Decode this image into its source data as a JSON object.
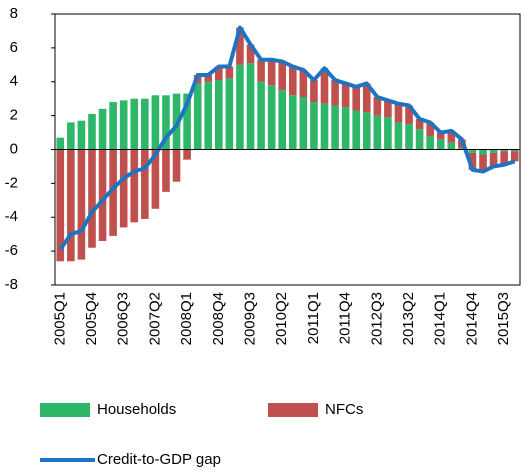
{
  "chart_data": {
    "type": "bar",
    "categories": [
      "2005Q1",
      null,
      null,
      "2005Q4",
      null,
      null,
      "2006Q3",
      null,
      null,
      "2007Q2",
      null,
      null,
      "2008Q1",
      null,
      null,
      "2008Q4",
      null,
      null,
      "2009Q3",
      null,
      null,
      "2010Q2",
      null,
      null,
      "2011Q1",
      null,
      null,
      "2011Q4",
      null,
      null,
      "2012Q3",
      null,
      null,
      "2013Q2",
      null,
      null,
      "2014Q1",
      null,
      null,
      "2014Q4",
      null,
      null,
      "2015Q3",
      null
    ],
    "series": [
      {
        "name": "Households",
        "color": "#2eb768",
        "stack": true,
        "values": [
          0.7,
          1.6,
          1.7,
          2.1,
          2.4,
          2.8,
          2.9,
          3.0,
          3.0,
          3.2,
          3.2,
          3.3,
          3.3,
          3.9,
          4.0,
          4.1,
          4.2,
          5.0,
          5.1,
          4.0,
          3.8,
          3.5,
          3.2,
          3.1,
          2.8,
          2.7,
          2.6,
          2.5,
          2.3,
          2.2,
          2.0,
          1.9,
          1.6,
          1.5,
          1.2,
          0.8,
          0.6,
          0.4,
          0.1,
          -0.2,
          -0.3,
          -0.2,
          -0.1,
          -0.1
        ]
      },
      {
        "name": "NFCs",
        "color": "#c0504d",
        "stack": true,
        "values": [
          -6.6,
          -6.6,
          -6.5,
          -5.8,
          -5.4,
          -5.1,
          -4.6,
          -4.3,
          -4.1,
          -3.5,
          -2.5,
          -1.9,
          -0.6,
          0.5,
          0.4,
          0.8,
          0.7,
          2.2,
          1.1,
          1.3,
          1.5,
          1.7,
          1.7,
          1.6,
          1.3,
          2.1,
          1.5,
          1.4,
          1.4,
          1.7,
          1.1,
          1.0,
          1.1,
          1.1,
          0.6,
          0.8,
          0.4,
          0.7,
          0.5,
          -1.0,
          -1.0,
          -0.8,
          -0.8,
          -0.6
        ]
      },
      {
        "name": "Credit-to-GDP gap",
        "color": "#1f74c2",
        "type": "line",
        "values": [
          -5.9,
          -5.0,
          -4.8,
          -3.7,
          -3.0,
          -2.3,
          -1.7,
          -1.3,
          -1.1,
          -0.3,
          0.7,
          1.4,
          2.7,
          4.4,
          4.4,
          4.9,
          4.9,
          7.2,
          6.2,
          5.3,
          5.3,
          5.2,
          4.9,
          4.7,
          4.1,
          4.8,
          4.1,
          3.9,
          3.7,
          3.9,
          3.1,
          2.9,
          2.7,
          2.6,
          1.8,
          1.6,
          1.0,
          1.1,
          0.6,
          -1.2,
          -1.3,
          -1.0,
          -0.9,
          -0.7
        ]
      }
    ],
    "ylim": [
      -8,
      8
    ],
    "yticks": [
      -8,
      -6,
      -4,
      -2,
      0,
      2,
      4,
      6,
      8
    ]
  }
}
